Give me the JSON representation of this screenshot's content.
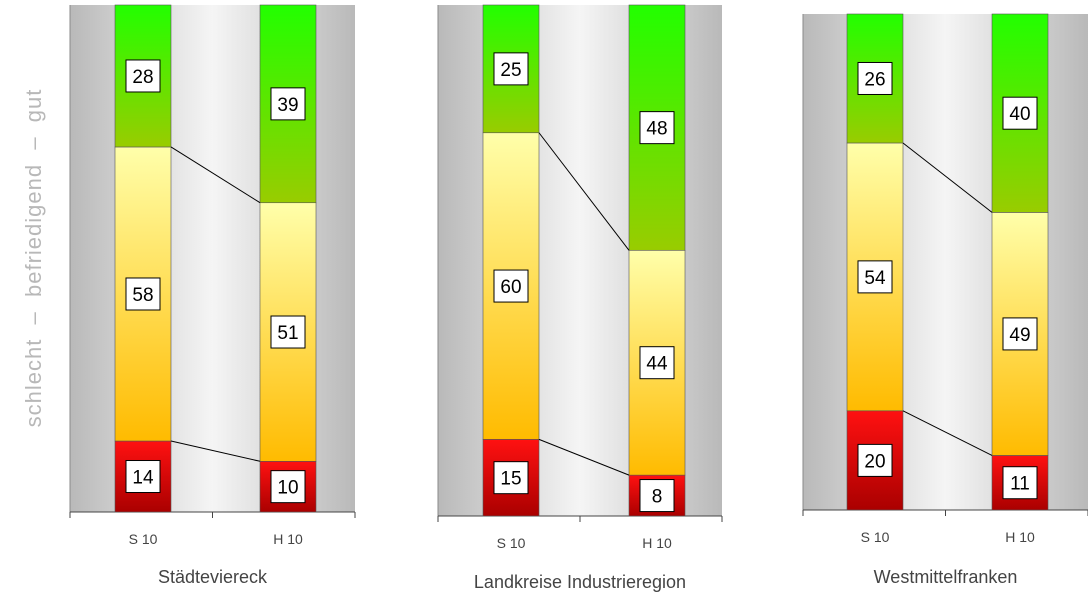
{
  "y_axis_label": "schlecht  –  befriedigend  –  gut",
  "chart_data": [
    {
      "type": "bar",
      "stacked": "percent",
      "title": "Städteviereck",
      "categories": [
        "S 10",
        "H 10"
      ],
      "series": [
        {
          "name": "schlecht",
          "values": [
            14,
            10
          ],
          "color": "#cc0000"
        },
        {
          "name": "befriedigend",
          "values": [
            58,
            51
          ],
          "color": "#ffee88"
        },
        {
          "name": "gut",
          "values": [
            28,
            39
          ],
          "color": "#33dd00"
        }
      ],
      "ylim": [
        0,
        100
      ]
    },
    {
      "type": "bar",
      "stacked": "percent",
      "title": "Landkreise Industrieregion",
      "categories": [
        "S 10",
        "H 10"
      ],
      "series": [
        {
          "name": "schlecht",
          "values": [
            15,
            8
          ],
          "color": "#cc0000"
        },
        {
          "name": "befriedigend",
          "values": [
            60,
            44
          ],
          "color": "#ffee88"
        },
        {
          "name": "gut",
          "values": [
            25,
            48
          ],
          "color": "#33dd00"
        }
      ],
      "ylim": [
        0,
        100
      ]
    },
    {
      "type": "bar",
      "stacked": "percent",
      "title": "Westmittelfranken",
      "categories": [
        "S 10",
        "H 10"
      ],
      "series": [
        {
          "name": "schlecht",
          "values": [
            20,
            11
          ],
          "color": "#cc0000"
        },
        {
          "name": "befriedigend",
          "values": [
            54,
            49
          ],
          "color": "#ffee88"
        },
        {
          "name": "gut",
          "values": [
            26,
            40
          ],
          "color": "#33dd00"
        }
      ],
      "ylim": [
        0,
        100
      ]
    }
  ]
}
